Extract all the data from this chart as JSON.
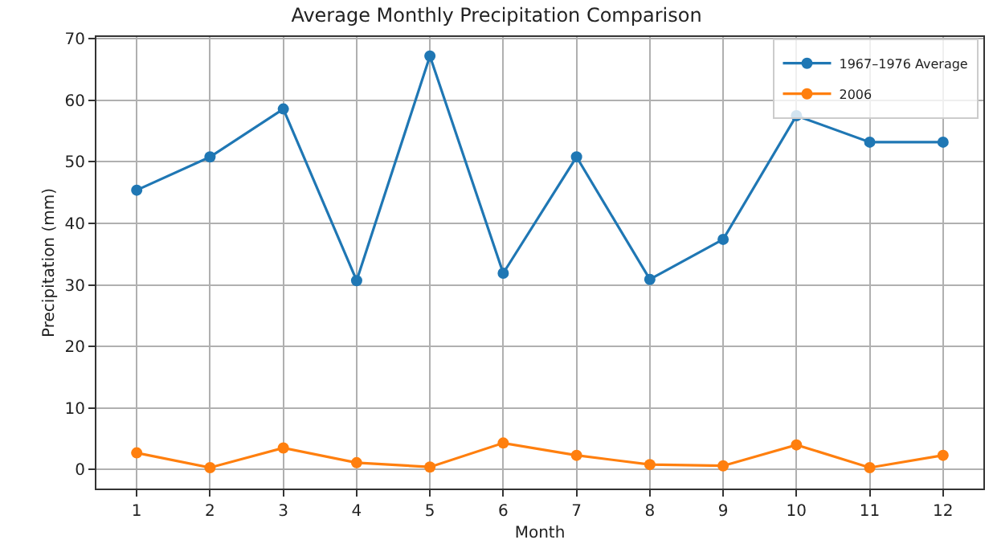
{
  "chart_data": {
    "type": "line",
    "title": "Average Monthly Precipitation Comparison",
    "xlabel": "Month",
    "ylabel": "Precipitation (mm)",
    "x": [
      1,
      2,
      3,
      4,
      5,
      6,
      7,
      8,
      9,
      10,
      11,
      12
    ],
    "series": [
      {
        "name": "1967–1976 Average",
        "color": "#1f77b4",
        "values": [
          45.4,
          50.8,
          58.6,
          30.7,
          67.2,
          31.9,
          50.8,
          30.9,
          37.4,
          57.5,
          53.2,
          53.2
        ]
      },
      {
        "name": "2006",
        "color": "#ff7f0e",
        "values": [
          2.7,
          0.3,
          3.5,
          1.1,
          0.4,
          4.3,
          2.3,
          0.8,
          0.6,
          4.0,
          0.3,
          2.3
        ]
      }
    ],
    "xlim": [
      0.45,
      12.55
    ],
    "xticks": [
      1,
      2,
      3,
      4,
      5,
      6,
      7,
      8,
      9,
      10,
      11,
      12
    ],
    "ylim": [
      -3.1,
      70.3
    ],
    "yticks": [
      0,
      10,
      20,
      30,
      40,
      50,
      60,
      70
    ],
    "grid": true,
    "legend": "top right",
    "marker": "circle",
    "line_style": "solid"
  }
}
